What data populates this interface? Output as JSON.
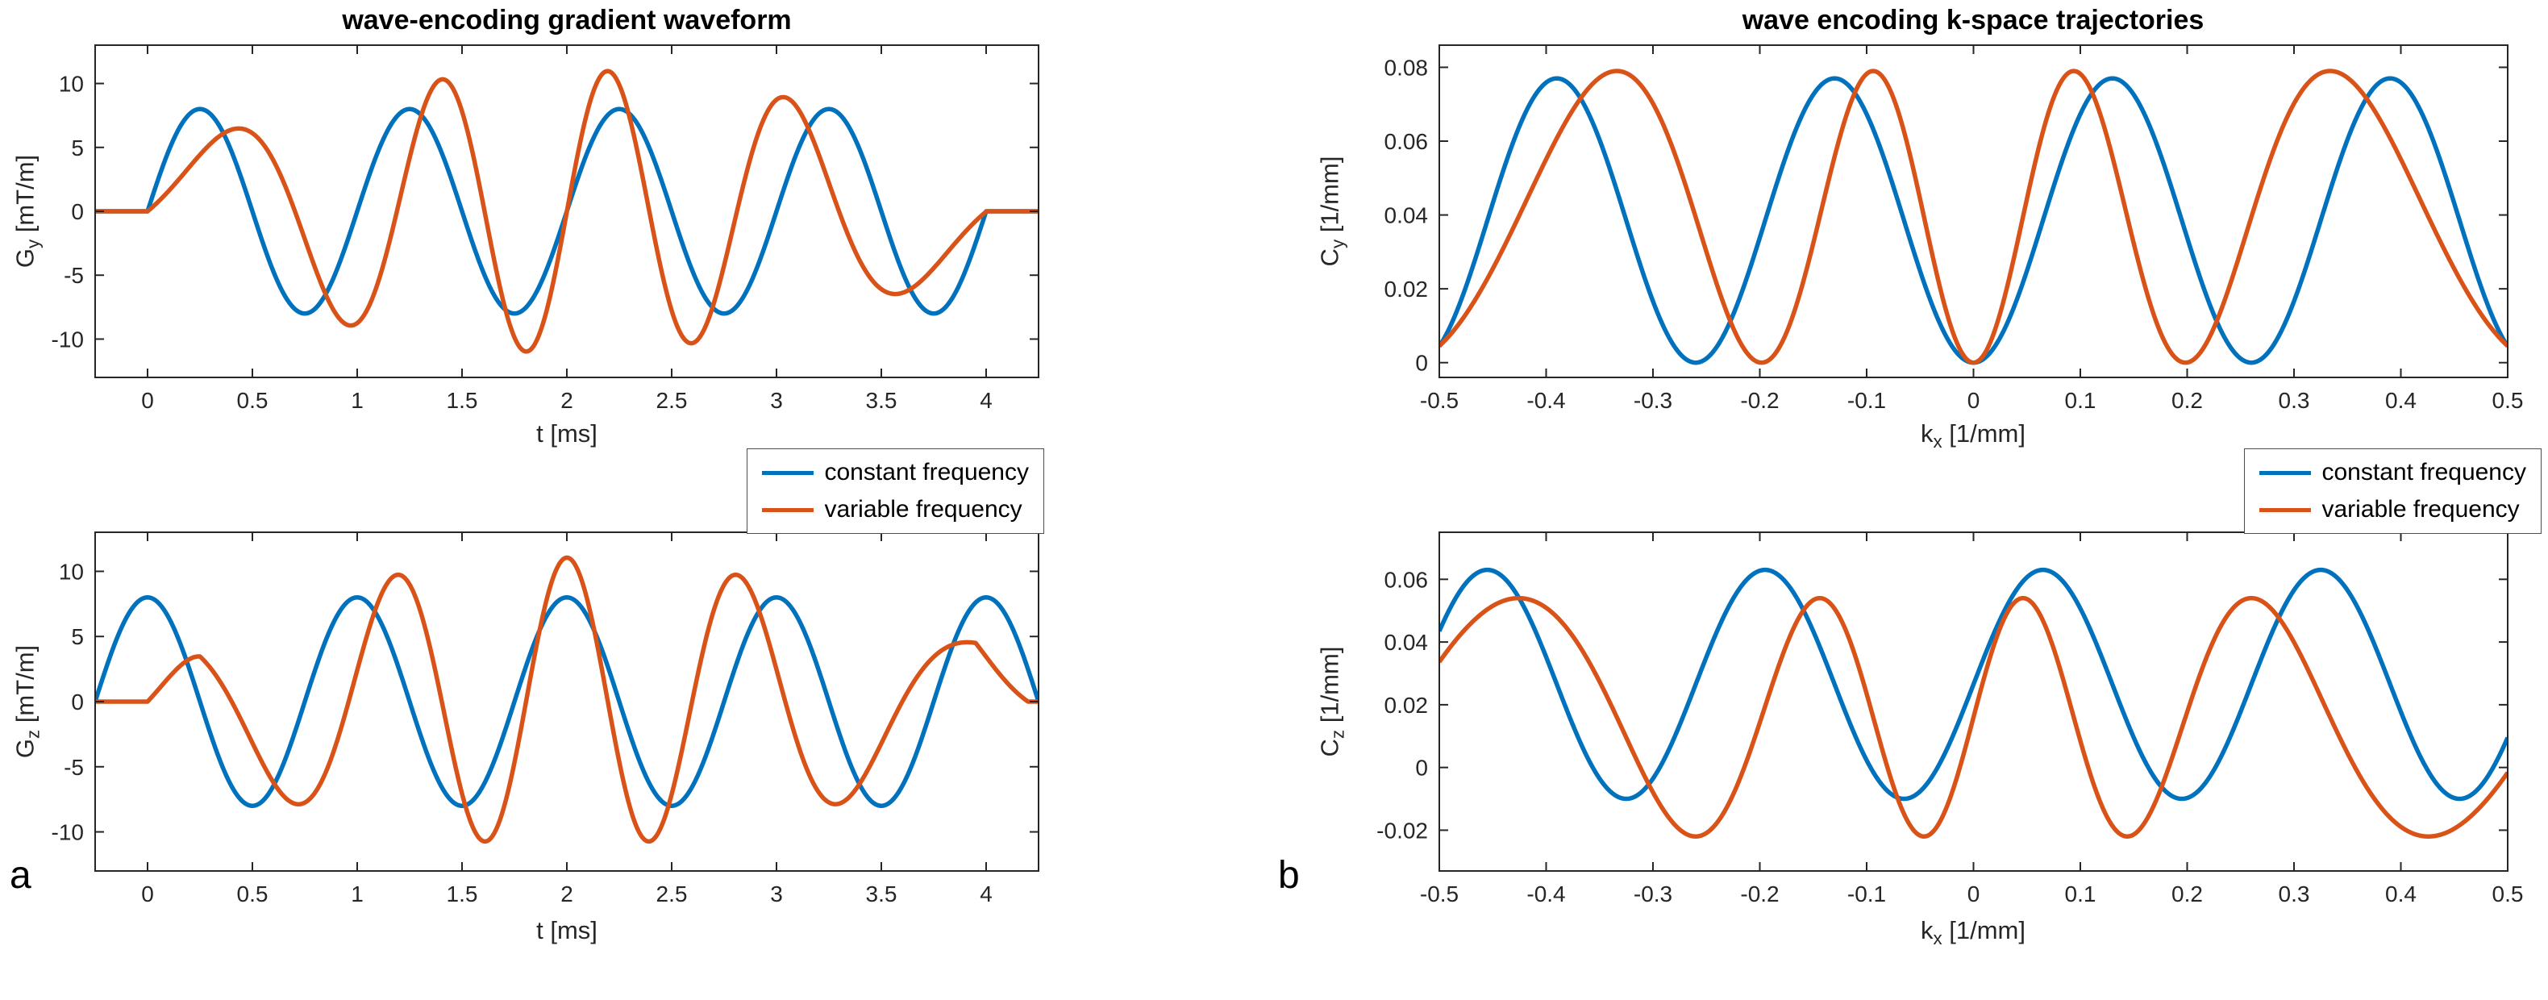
{
  "figure": {
    "panel_a_label": "a",
    "panel_b_label": "b"
  },
  "colors": {
    "blue": "#0072BD",
    "orange": "#D95319",
    "axis": "#262626"
  },
  "chart_data": [
    {
      "id": "gradient-gy",
      "type": "line",
      "title": "wave-encoding gradient waveform",
      "xlabel": {
        "pre": "t [ms]",
        "sub": "",
        "post": ""
      },
      "ylabel": {
        "pre": "G",
        "sub": "y",
        "post": " [mT/m]"
      },
      "xlim": [
        -0.25,
        4.25
      ],
      "ylim": [
        -13,
        13
      ],
      "xticks": {
        "values": [
          0,
          0.5,
          1,
          1.5,
          2,
          2.5,
          3,
          3.5,
          4
        ],
        "labels": [
          "0",
          "0.5",
          "1",
          "1.5",
          "2",
          "2.5",
          "3",
          "3.5",
          "4"
        ]
      },
      "yticks": {
        "values": [
          -10,
          -5,
          0,
          5,
          10
        ],
        "labels": [
          "-10",
          "-5",
          "0",
          "5",
          "10"
        ]
      },
      "grid": false,
      "series": [
        {
          "name": "constant frequency",
          "color": "#0072BD",
          "gen": {
            "kind": "sine",
            "amp": 8,
            "freq": 1,
            "phase": 0,
            "offset": 0,
            "clip": [
              0,
              4
            ],
            "outside": 0
          },
          "summary": "8 mT/m sine, period 1 ms, 4 cycles between t=0 and t=4 ms, flat 0 outside"
        },
        {
          "name": "variable frequency",
          "color": "#D95319",
          "gen": {
            "kind": "fm",
            "amp": 8.6,
            "f0": 0.5,
            "f1": 0.785,
            "trig": "sin",
            "clip": [
              0,
              4
            ],
            "outside": 0,
            "ramp": 0
          },
          "summary": "frequency-modulated sine, inst. frequency 0.5 to 1.29 to 0.5 kHz, peaks approx +5.5 at 0.45 ms, -11 at 1.85 ms, +11 at 2.2 ms, -6 at 3.55 ms"
        }
      ]
    },
    {
      "id": "trajectory-cy",
      "type": "line",
      "title": "wave encoding k-space trajectories",
      "xlabel": {
        "pre": "k",
        "sub": "x",
        "post": " [1/mm]"
      },
      "ylabel": {
        "pre": "C",
        "sub": "y",
        "post": " [1/mm]"
      },
      "xlim": [
        -0.5,
        0.5
      ],
      "ylim": [
        -0.004,
        0.086
      ],
      "xticks": {
        "values": [
          -0.5,
          -0.4,
          -0.3,
          -0.2,
          -0.1,
          0,
          0.1,
          0.2,
          0.3,
          0.4,
          0.5
        ],
        "labels": [
          "-0.5",
          "-0.4",
          "-0.3",
          "-0.2",
          "-0.1",
          "0",
          "0.1",
          "0.2",
          "0.3",
          "0.4",
          "0.5"
        ]
      },
      "yticks": {
        "values": [
          0,
          0.02,
          0.04,
          0.06,
          0.08
        ],
        "labels": [
          "0",
          "0.02",
          "0.04",
          "0.06",
          "0.08"
        ]
      },
      "grid": false,
      "series": [
        {
          "name": "constant frequency",
          "color": "#0072BD",
          "gen": {
            "kind": "wave",
            "form": "1mcos",
            "amp": 0.0385,
            "period": 0.26,
            "warp": 0
          },
          "summary": "Cy oscillates 0 to 0.077 1/mm, period 0.26, maxima near kx = -0.39, -0.13, 0.13, 0.39; zeros at 0, +/-0.26"
        },
        {
          "name": "variable frequency",
          "color": "#D95319",
          "gen": {
            "kind": "wave",
            "form": "1mcos",
            "amp": 0.0395,
            "period": 0.26,
            "warp": 0.065
          },
          "summary": "peak 0.079 1/mm, maxima pulled toward center near kx = -0.33, -0.095, 0.095, 0.33"
        }
      ]
    },
    {
      "id": "gradient-gz",
      "type": "line",
      "title": "",
      "xlabel": {
        "pre": "t [ms]",
        "sub": "",
        "post": ""
      },
      "ylabel": {
        "pre": "G",
        "sub": "z",
        "post": " [mT/m]"
      },
      "xlim": [
        -0.25,
        4.25
      ],
      "ylim": [
        -13,
        13
      ],
      "xticks": {
        "values": [
          0,
          0.5,
          1,
          1.5,
          2,
          2.5,
          3,
          3.5,
          4
        ],
        "labels": [
          "0",
          "0.5",
          "1",
          "1.5",
          "2",
          "2.5",
          "3",
          "3.5",
          "4"
        ]
      },
      "yticks": {
        "values": [
          -10,
          -5,
          0,
          5,
          10
        ],
        "labels": [
          "-10",
          "-5",
          "0",
          "5",
          "10"
        ]
      },
      "grid": false,
      "series": [
        {
          "name": "constant frequency",
          "color": "#0072BD",
          "gen": {
            "kind": "sine",
            "amp": 8,
            "freq": 1,
            "phase": 1.5707963,
            "offset": 0
          },
          "summary": "8 mT/m cosine, period 1 ms, maxima of 8 at t = 0,1,2,3,4 ms, zero at domain edges -0.25 and 4.25 ms"
        },
        {
          "name": "variable frequency",
          "color": "#D95319",
          "gen": {
            "kind": "fm",
            "amp": 8.6,
            "f0": 0.5,
            "f1": 0.785,
            "trig": "cos",
            "clip": [
              0,
              4.2
            ],
            "outside": 0,
            "ramp": 0.25
          },
          "summary": "frequency-modulated cosine with end ramps, small lobes approx 4.8 near t=0.3 and 3.95 ms, central peak approx 11 at t=2 ms, minima approx -10.8 at 1.65 and 2.35 ms"
        }
      ]
    },
    {
      "id": "trajectory-cz",
      "type": "line",
      "title": "",
      "xlabel": {
        "pre": "k",
        "sub": "x",
        "post": " [1/mm]"
      },
      "ylabel": {
        "pre": "C",
        "sub": "z",
        "post": " [1/mm]"
      },
      "xlim": [
        -0.5,
        0.5
      ],
      "ylim": [
        -0.033,
        0.075
      ],
      "xticks": {
        "values": [
          -0.5,
          -0.4,
          -0.3,
          -0.2,
          -0.1,
          0,
          0.1,
          0.2,
          0.3,
          0.4,
          0.5
        ],
        "labels": [
          "-0.5",
          "-0.4",
          "-0.3",
          "-0.2",
          "-0.1",
          "0",
          "0.1",
          "0.2",
          "0.3",
          "0.4",
          "0.5"
        ]
      },
      "yticks": {
        "values": [
          -0.02,
          0,
          0.02,
          0.04,
          0.06
        ],
        "labels": [
          "-0.02",
          "0",
          "0.02",
          "0.04",
          "0.06"
        ]
      },
      "grid": false,
      "series": [
        {
          "name": "constant frequency",
          "color": "#0072BD",
          "gen": {
            "kind": "wave",
            "form": "sin",
            "amp": 0.0365,
            "offset": 0.0265,
            "period": 0.26,
            "warp": 0
          },
          "summary": "Cz oscillates -0.01 to 0.063 1/mm, period 0.26, maxima near kx = -0.455, -0.195, 0.065, 0.325; value 0.044 at kx=-0.5"
        },
        {
          "name": "variable frequency",
          "color": "#D95319",
          "gen": {
            "kind": "wave",
            "form": "sin",
            "amp": 0.038,
            "offset": 0.016,
            "period": 0.26,
            "warp": 0.065
          },
          "summary": "oscillates -0.022 to 0.054 1/mm, maxima pulled toward center near kx = -0.425, -0.145, 0.047, 0.26"
        }
      ]
    }
  ]
}
